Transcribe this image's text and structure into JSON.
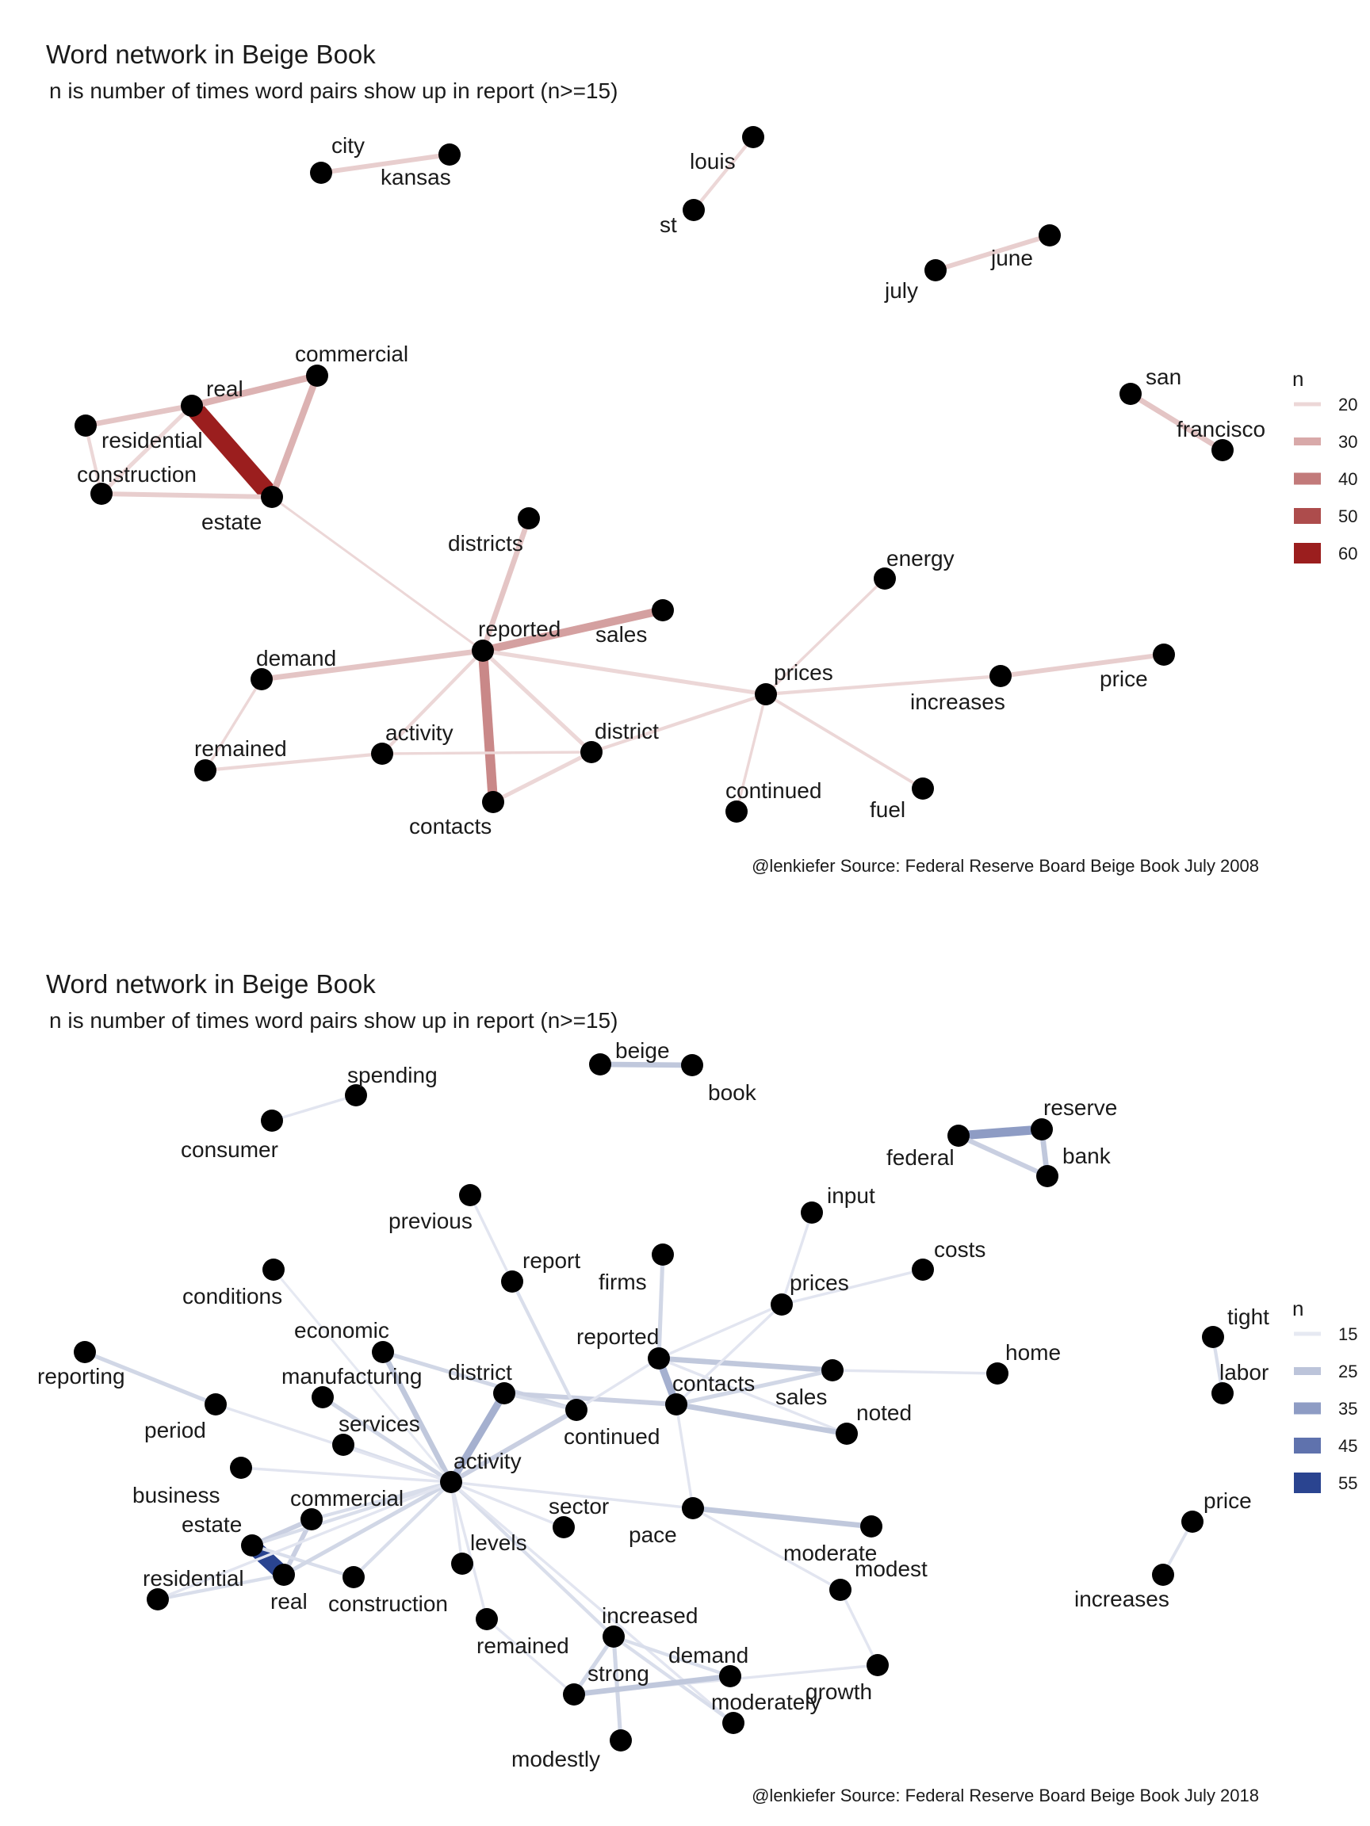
{
  "panels": [
    {
      "id": "2008",
      "title": "Word network in Beige Book",
      "subtitle": "n is number of times word pairs show up in report (n>=15)",
      "caption": "@lenkiefer Source: Federal Reserve Board Beige Book July 2008",
      "legend": {
        "title": "n",
        "items": [
          {
            "label": "20",
            "color": "#ecd7d7"
          },
          {
            "label": "30",
            "color": "#d8a9a9"
          },
          {
            "label": "40",
            "color": "#c27a7a"
          },
          {
            "label": "50",
            "color": "#ad4c4c"
          },
          {
            "label": "60",
            "color": "#9b1e1e"
          }
        ]
      },
      "nodes": [
        {
          "id": "city",
          "label": "city"
        },
        {
          "id": "kansas",
          "label": "kansas"
        },
        {
          "id": "louis",
          "label": "louis"
        },
        {
          "id": "st",
          "label": "st"
        },
        {
          "id": "june",
          "label": "june"
        },
        {
          "id": "july",
          "label": "july"
        },
        {
          "id": "commercial",
          "label": "commercial"
        },
        {
          "id": "real",
          "label": "real"
        },
        {
          "id": "residential",
          "label": "residential"
        },
        {
          "id": "construction",
          "label": "construction"
        },
        {
          "id": "estate",
          "label": "estate"
        },
        {
          "id": "san",
          "label": "san"
        },
        {
          "id": "francisco",
          "label": "francisco"
        },
        {
          "id": "districts",
          "label": "districts"
        },
        {
          "id": "energy",
          "label": "energy"
        },
        {
          "id": "reported",
          "label": "reported"
        },
        {
          "id": "sales",
          "label": "sales"
        },
        {
          "id": "demand",
          "label": "demand"
        },
        {
          "id": "prices",
          "label": "prices"
        },
        {
          "id": "increases",
          "label": "increases"
        },
        {
          "id": "price",
          "label": "price"
        },
        {
          "id": "remained",
          "label": "remained"
        },
        {
          "id": "activity",
          "label": "activity"
        },
        {
          "id": "district",
          "label": "district"
        },
        {
          "id": "continued",
          "label": "continued"
        },
        {
          "id": "fuel",
          "label": "fuel"
        },
        {
          "id": "contacts",
          "label": "contacts"
        }
      ],
      "edges": [
        {
          "from": "city",
          "to": "kansas",
          "n": 22
        },
        {
          "from": "louis",
          "to": "st",
          "n": 18
        },
        {
          "from": "june",
          "to": "july",
          "n": 22
        },
        {
          "from": "real",
          "to": "estate",
          "n": 63
        },
        {
          "from": "commercial",
          "to": "real",
          "n": 28
        },
        {
          "from": "commercial",
          "to": "estate",
          "n": 28
        },
        {
          "from": "residential",
          "to": "real",
          "n": 24
        },
        {
          "from": "residential",
          "to": "construction",
          "n": 18
        },
        {
          "from": "construction",
          "to": "real",
          "n": 20
        },
        {
          "from": "construction",
          "to": "estate",
          "n": 22
        },
        {
          "from": "san",
          "to": "francisco",
          "n": 24
        },
        {
          "from": "estate",
          "to": "reported",
          "n": 15
        },
        {
          "from": "reported",
          "to": "districts",
          "n": 24
        },
        {
          "from": "reported",
          "to": "sales",
          "n": 32
        },
        {
          "from": "reported",
          "to": "demand",
          "n": 24
        },
        {
          "from": "reported",
          "to": "prices",
          "n": 20
        },
        {
          "from": "reported",
          "to": "contacts",
          "n": 37
        },
        {
          "from": "reported",
          "to": "activity",
          "n": 18
        },
        {
          "from": "reported",
          "to": "district",
          "n": 20
        },
        {
          "from": "demand",
          "to": "remained",
          "n": 16
        },
        {
          "from": "remained",
          "to": "activity",
          "n": 18
        },
        {
          "from": "activity",
          "to": "district",
          "n": 16
        },
        {
          "from": "district",
          "to": "contacts",
          "n": 20
        },
        {
          "from": "district",
          "to": "prices",
          "n": 18
        },
        {
          "from": "prices",
          "to": "energy",
          "n": 16
        },
        {
          "from": "prices",
          "to": "increases",
          "n": 18
        },
        {
          "from": "increases",
          "to": "price",
          "n": 22
        },
        {
          "from": "prices",
          "to": "continued",
          "n": 16
        },
        {
          "from": "prices",
          "to": "fuel",
          "n": 17
        }
      ]
    },
    {
      "id": "2018",
      "title": "Word network in Beige Book",
      "subtitle": "n is number of times word pairs show up in report (n>=15)",
      "caption": "@lenkiefer Source: Federal Reserve Board Beige Book July 2018",
      "legend": {
        "title": "n",
        "items": [
          {
            "label": "15",
            "color": "#e6e9f2"
          },
          {
            "label": "25",
            "color": "#bcc4da"
          },
          {
            "label": "35",
            "color": "#8e9cc4"
          },
          {
            "label": "45",
            "color": "#5f72ad"
          },
          {
            "label": "55",
            "color": "#2a4490"
          }
        ]
      },
      "nodes": [
        {
          "id": "spending",
          "label": "spending"
        },
        {
          "id": "consumer",
          "label": "consumer"
        },
        {
          "id": "beige",
          "label": "beige"
        },
        {
          "id": "book",
          "label": "book"
        },
        {
          "id": "reserve",
          "label": "reserve"
        },
        {
          "id": "federal",
          "label": "federal"
        },
        {
          "id": "bank",
          "label": "bank"
        },
        {
          "id": "input",
          "label": "input"
        },
        {
          "id": "previous",
          "label": "previous"
        },
        {
          "id": "costs",
          "label": "costs"
        },
        {
          "id": "report",
          "label": "report"
        },
        {
          "id": "firms",
          "label": "firms"
        },
        {
          "id": "prices",
          "label": "prices"
        },
        {
          "id": "conditions",
          "label": "conditions"
        },
        {
          "id": "tight",
          "label": "tight"
        },
        {
          "id": "labor",
          "label": "labor"
        },
        {
          "id": "economic",
          "label": "economic"
        },
        {
          "id": "reported",
          "label": "reported"
        },
        {
          "id": "home",
          "label": "home"
        },
        {
          "id": "reporting",
          "label": "reporting"
        },
        {
          "id": "manufacturing",
          "label": "manufacturing"
        },
        {
          "id": "district",
          "label": "district"
        },
        {
          "id": "contacts",
          "label": "contacts"
        },
        {
          "id": "sales",
          "label": "sales"
        },
        {
          "id": "period",
          "label": "period"
        },
        {
          "id": "noted",
          "label": "noted"
        },
        {
          "id": "services",
          "label": "services"
        },
        {
          "id": "continued",
          "label": "continued"
        },
        {
          "id": "business",
          "label": "business"
        },
        {
          "id": "activity",
          "label": "activity"
        },
        {
          "id": "commercial",
          "label": "commercial"
        },
        {
          "id": "sector",
          "label": "sector"
        },
        {
          "id": "estate",
          "label": "estate"
        },
        {
          "id": "pace",
          "label": "pace"
        },
        {
          "id": "price",
          "label": "price"
        },
        {
          "id": "increases",
          "label": "increases"
        },
        {
          "id": "levels",
          "label": "levels"
        },
        {
          "id": "moderate",
          "label": "moderate"
        },
        {
          "id": "residential",
          "label": "residential"
        },
        {
          "id": "real",
          "label": "real"
        },
        {
          "id": "construction",
          "label": "construction"
        },
        {
          "id": "modest",
          "label": "modest"
        },
        {
          "id": "increased",
          "label": "increased"
        },
        {
          "id": "remained",
          "label": "remained"
        },
        {
          "id": "demand",
          "label": "demand"
        },
        {
          "id": "strong",
          "label": "strong"
        },
        {
          "id": "growth",
          "label": "growth"
        },
        {
          "id": "moderately",
          "label": "moderately"
        },
        {
          "id": "modestly",
          "label": "modestly"
        }
      ],
      "edges": [
        {
          "from": "consumer",
          "to": "spending",
          "n": 16
        },
        {
          "from": "beige",
          "to": "book",
          "n": 24
        },
        {
          "from": "federal",
          "to": "reserve",
          "n": 35
        },
        {
          "from": "federal",
          "to": "bank",
          "n": 22
        },
        {
          "from": "reserve",
          "to": "bank",
          "n": 24
        },
        {
          "from": "tight",
          "to": "labor",
          "n": 18
        },
        {
          "from": "increases",
          "to": "price",
          "n": 17
        },
        {
          "from": "real",
          "to": "estate",
          "n": 55
        },
        {
          "from": "residential",
          "to": "real",
          "n": 18
        },
        {
          "from": "commercial",
          "to": "real",
          "n": 22
        },
        {
          "from": "commercial",
          "to": "estate",
          "n": 22
        },
        {
          "from": "estate",
          "to": "construction",
          "n": 18
        },
        {
          "from": "activity",
          "to": "real",
          "n": 20
        },
        {
          "from": "activity",
          "to": "estate",
          "n": 18
        },
        {
          "from": "activity",
          "to": "commercial",
          "n": 18
        },
        {
          "from": "activity",
          "to": "residential",
          "n": 16
        },
        {
          "from": "activity",
          "to": "construction",
          "n": 18
        },
        {
          "from": "activity",
          "to": "district",
          "n": 30
        },
        {
          "from": "activity",
          "to": "economic",
          "n": 24
        },
        {
          "from": "activity",
          "to": "manufacturing",
          "n": 20
        },
        {
          "from": "activity",
          "to": "services",
          "n": 18
        },
        {
          "from": "activity",
          "to": "business",
          "n": 16
        },
        {
          "from": "activity",
          "to": "period",
          "n": 16
        },
        {
          "from": "activity",
          "to": "conditions",
          "n": 15
        },
        {
          "from": "activity",
          "to": "continued",
          "n": 22
        },
        {
          "from": "activity",
          "to": "sector",
          "n": 16
        },
        {
          "from": "activity",
          "to": "levels",
          "n": 16
        },
        {
          "from": "activity",
          "to": "remained",
          "n": 16
        },
        {
          "from": "activity",
          "to": "increased",
          "n": 18
        },
        {
          "from": "activity",
          "to": "moderately",
          "n": 16
        },
        {
          "from": "activity",
          "to": "pace",
          "n": 16
        },
        {
          "from": "reporting",
          "to": "period",
          "n": 20
        },
        {
          "from": "economic",
          "to": "continued",
          "n": 20
        },
        {
          "from": "district",
          "to": "contacts",
          "n": 22
        },
        {
          "from": "district",
          "to": "continued",
          "n": 18
        },
        {
          "from": "previous",
          "to": "report",
          "n": 16
        },
        {
          "from": "report",
          "to": "continued",
          "n": 18
        },
        {
          "from": "continued",
          "to": "reported",
          "n": 16
        },
        {
          "from": "firms",
          "to": "reported",
          "n": 20
        },
        {
          "from": "reported",
          "to": "prices",
          "n": 16
        },
        {
          "from": "reported",
          "to": "contacts",
          "n": 30
        },
        {
          "from": "reported",
          "to": "sales",
          "n": 24
        },
        {
          "from": "reported",
          "to": "noted",
          "n": 16
        },
        {
          "from": "contacts",
          "to": "sales",
          "n": 20
        },
        {
          "from": "contacts",
          "to": "noted",
          "n": 24
        },
        {
          "from": "contacts",
          "to": "prices",
          "n": 16
        },
        {
          "from": "input",
          "to": "prices",
          "n": 16
        },
        {
          "from": "prices",
          "to": "costs",
          "n": 16
        },
        {
          "from": "sales",
          "to": "home",
          "n": 16
        },
        {
          "from": "contacts",
          "to": "pace",
          "n": 16
        },
        {
          "from": "pace",
          "to": "moderate",
          "n": 24
        },
        {
          "from": "pace",
          "to": "modest",
          "n": 16
        },
        {
          "from": "modest",
          "to": "growth",
          "n": 16
        },
        {
          "from": "growth",
          "to": "strong",
          "n": 16
        },
        {
          "from": "increased",
          "to": "demand",
          "n": 18
        },
        {
          "from": "increased",
          "to": "strong",
          "n": 20
        },
        {
          "from": "increased",
          "to": "modestly",
          "n": 20
        },
        {
          "from": "increased",
          "to": "moderately",
          "n": 18
        },
        {
          "from": "strong",
          "to": "demand",
          "n": 24
        },
        {
          "from": "remained",
          "to": "strong",
          "n": 16
        }
      ]
    }
  ]
}
